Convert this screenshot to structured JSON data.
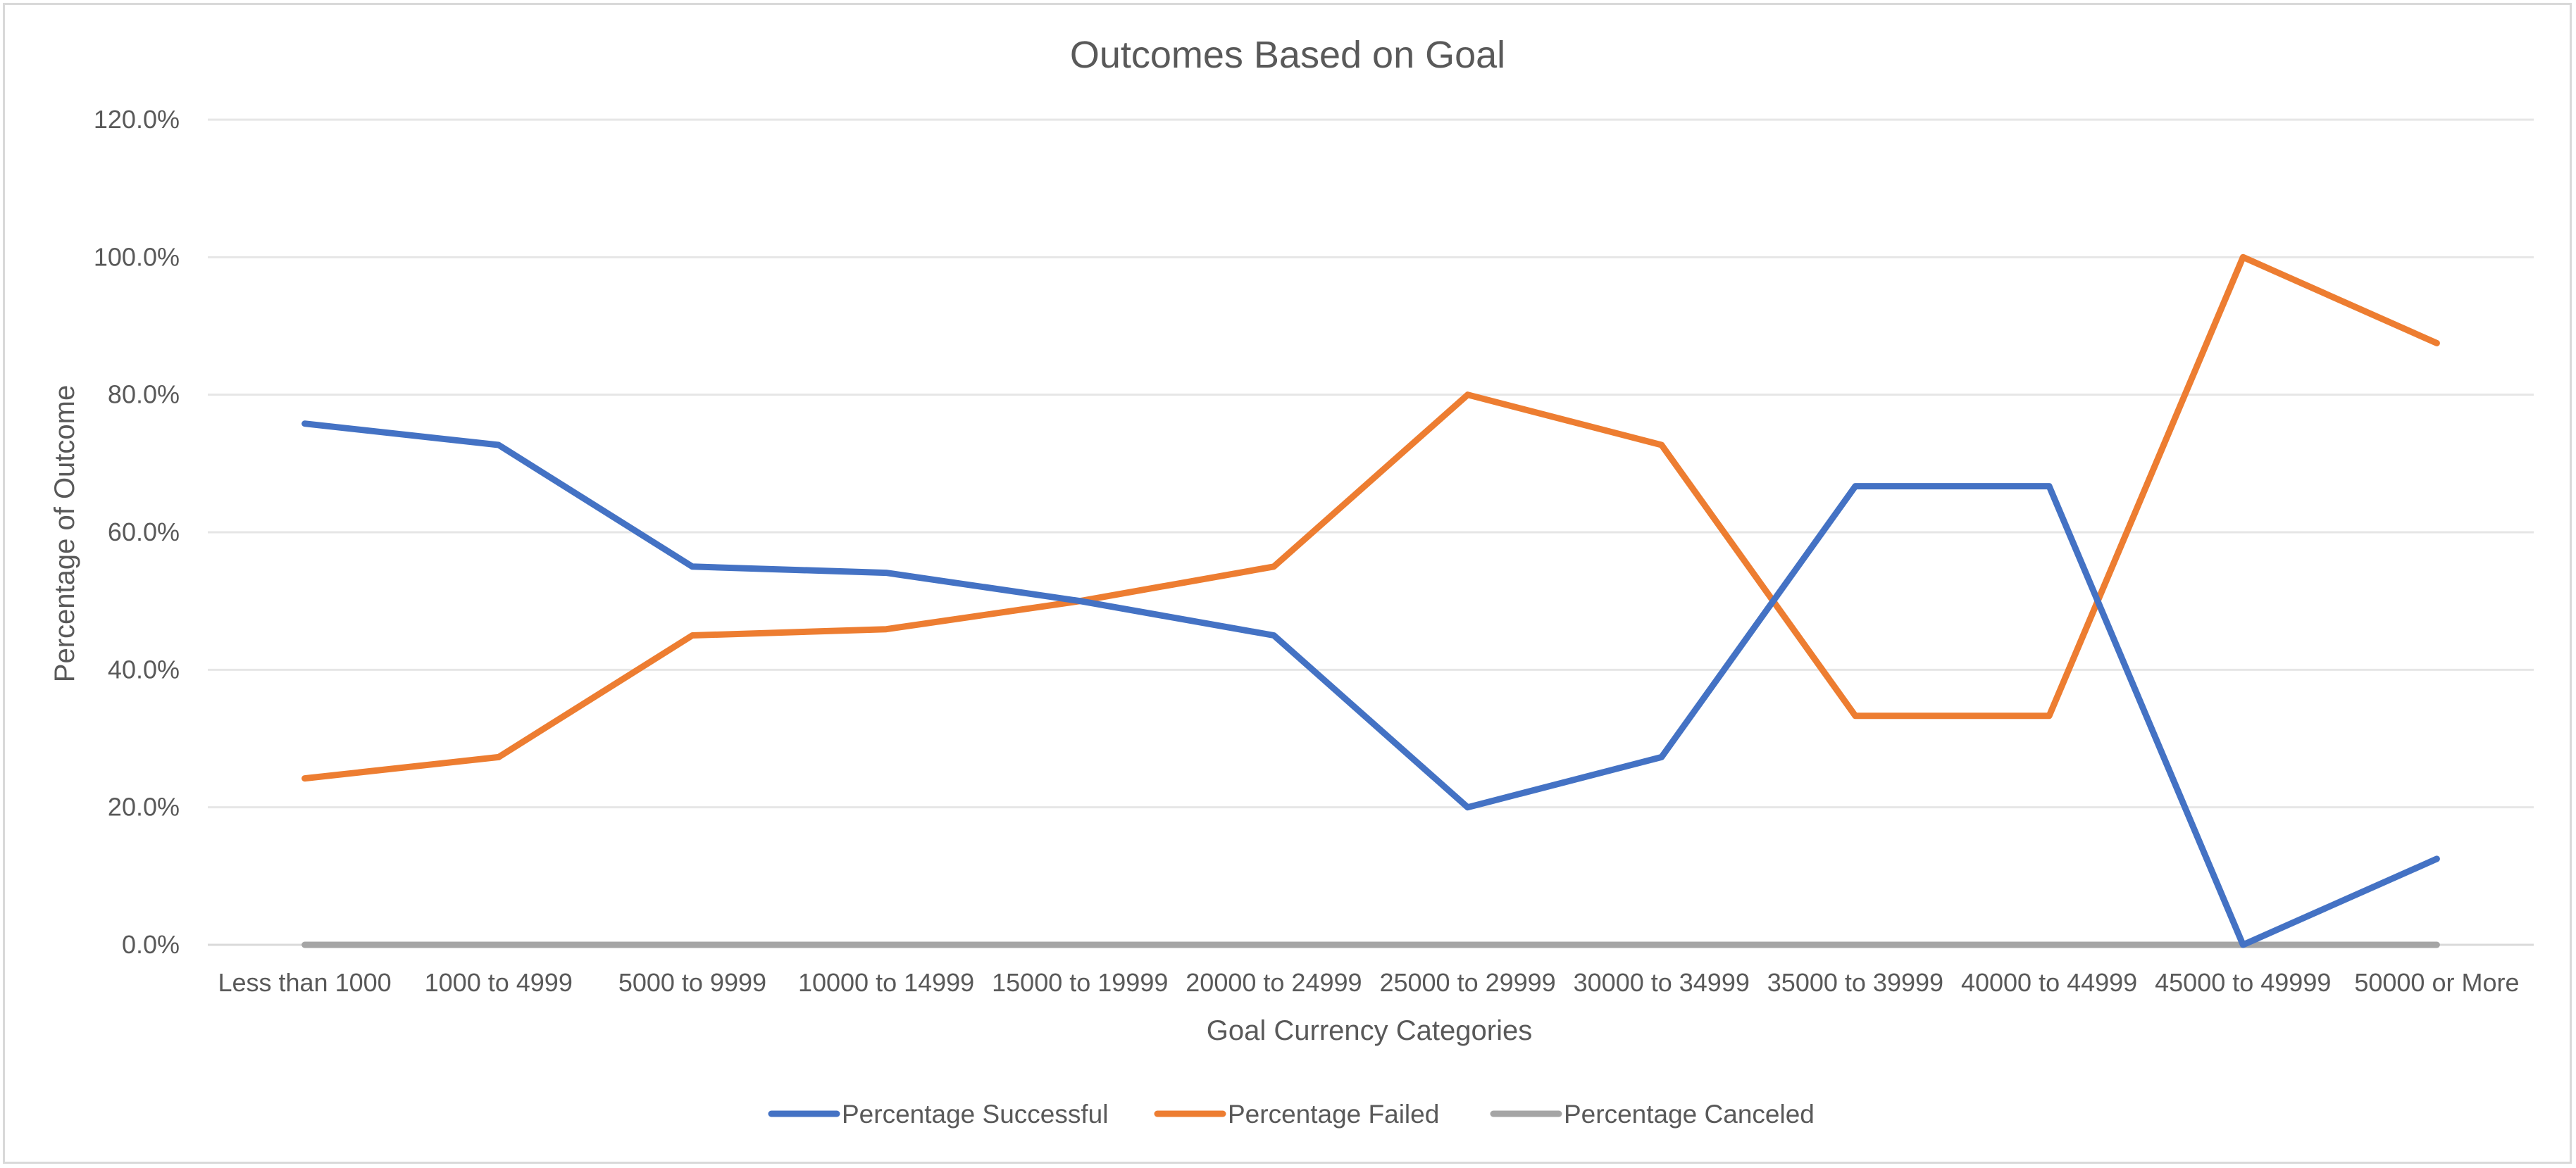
{
  "chart_data": {
    "type": "line",
    "title": "Outcomes Based on Goal",
    "xlabel": "Goal Currency Categories",
    "ylabel": "Percentage of Outcome",
    "ylim": [
      0,
      120
    ],
    "ytick_step": 20,
    "ytick_labels": [
      "0.0%",
      "20.0%",
      "40.0%",
      "60.0%",
      "80.0%",
      "100.0%",
      "120.0%"
    ],
    "grid": true,
    "legend_position": "bottom",
    "categories": [
      "Less than 1000",
      "1000 to 4999",
      "5000 to 9999",
      "10000 to 14999",
      "15000 to 19999",
      "20000 to 24999",
      "25000 to 29999",
      "30000 to 34999",
      "35000 to 39999",
      "40000 to 44999",
      "45000 to 49999",
      "50000 or More"
    ],
    "series": [
      {
        "name": "Percentage Successful",
        "color": "#4472c4",
        "values": [
          75.8,
          72.7,
          55.0,
          54.1,
          50.0,
          45.0,
          20.0,
          27.3,
          66.7,
          66.7,
          0.0,
          12.5
        ]
      },
      {
        "name": "Percentage Failed",
        "color": "#ed7d31",
        "values": [
          24.2,
          27.3,
          45.0,
          45.9,
          50.0,
          55.0,
          80.0,
          72.7,
          33.3,
          33.3,
          100.0,
          87.5
        ]
      },
      {
        "name": "Percentage Canceled",
        "color": "#a5a5a5",
        "values": [
          0.0,
          0.0,
          0.0,
          0.0,
          0.0,
          0.0,
          0.0,
          0.0,
          0.0,
          0.0,
          0.0,
          0.0
        ]
      }
    ]
  }
}
